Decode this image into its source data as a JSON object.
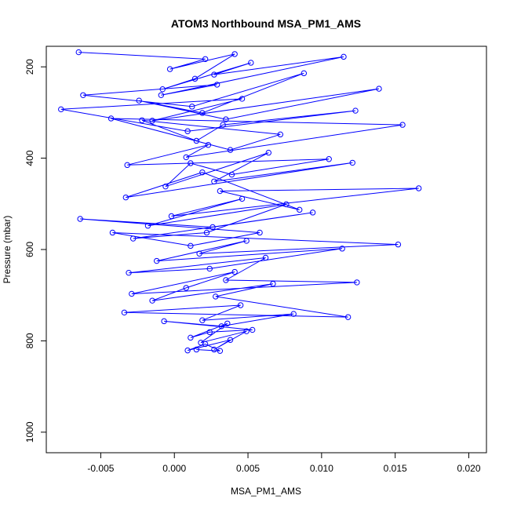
{
  "chart_data": {
    "type": "line",
    "title": "ATOM3 Northbound MSA_PM1_AMS",
    "xlabel": "MSA_PM1_AMS",
    "ylabel": "Pressure (mbar)",
    "xlim": [
      -0.0087,
      0.0212
    ],
    "ylim": [
      1045,
      155
    ],
    "y_reversed": true,
    "xticks": [
      "-0.005",
      "0.000",
      "0.005",
      "0.010",
      "0.015",
      "0.020"
    ],
    "xtick_values": [
      -0.005,
      0.0,
      0.005,
      0.01,
      0.015,
      0.02
    ],
    "yticks": [
      "200",
      "400",
      "600",
      "800",
      "1000"
    ],
    "ytick_values": [
      200,
      400,
      600,
      800,
      1000
    ],
    "grid": false,
    "series_color": "#0000ff",
    "marker": "open-circle",
    "series": [
      {
        "x": [
          -0.0065,
          0.0021,
          -0.0003,
          0.0041,
          0.0014,
          -0.0008,
          0.0052,
          0.0027,
          0.0115,
          -0.0009,
          0.0029,
          -0.0062,
          0.0012,
          0.0088,
          0.0019,
          -0.0024,
          0.0035,
          0.0139,
          -0.0015,
          0.0046,
          -0.0077,
          0.0009,
          0.0123,
          0.0033,
          0.0015,
          -0.0022,
          0.0072,
          0.0038,
          -0.0043,
          0.0155,
          0.0008,
          0.0023,
          -0.0032,
          0.0105,
          0.0039,
          0.0011,
          -0.0006,
          0.0064,
          0.0027,
          0.0121,
          -0.0033,
          0.0019,
          0.0085,
          0.0031,
          0.0166,
          -0.0002,
          0.0046,
          -0.0018,
          0.0076,
          0.0022,
          -0.0028,
          0.0094,
          0.0026,
          -0.0064,
          0.0058,
          0.0011,
          -0.0042,
          0.0152,
          0.0017,
          0.0049,
          -0.0012,
          0.0114,
          0.0024,
          -0.0031,
          0.0062,
          0.0035,
          0.0124,
          -0.0029,
          0.0041,
          0.0008,
          -0.0015,
          0.0067,
          0.0028,
          0.0118,
          -0.0034,
          0.0045,
          0.0019,
          0.0081,
          0.0032,
          -0.0007,
          0.0053,
          0.0024,
          0.0011,
          0.0036,
          0.0018,
          0.0049,
          0.0027,
          0.0038,
          0.0009,
          0.0021,
          0.0031,
          0.0015
        ],
        "y": [
          168,
          183,
          205,
          172,
          226,
          249,
          191,
          217,
          178,
          262,
          239,
          262,
          287,
          214,
          301,
          274,
          315,
          248,
          318,
          270,
          293,
          341,
          296,
          327,
          362,
          317,
          348,
          382,
          313,
          327,
          398,
          371,
          415,
          402,
          436,
          411,
          462,
          388,
          451,
          410,
          486,
          431,
          513,
          472,
          466,
          527,
          489,
          548,
          501,
          563,
          576,
          519,
          551,
          533,
          563,
          592,
          563,
          589,
          609,
          581,
          625,
          598,
          642,
          651,
          618,
          667,
          672,
          697,
          649,
          684,
          712,
          675,
          703,
          748,
          738,
          722,
          755,
          741,
          768,
          757,
          776,
          781,
          793,
          762,
          804,
          779,
          819,
          798,
          821,
          807,
          822,
          819
        ]
      }
    ]
  }
}
